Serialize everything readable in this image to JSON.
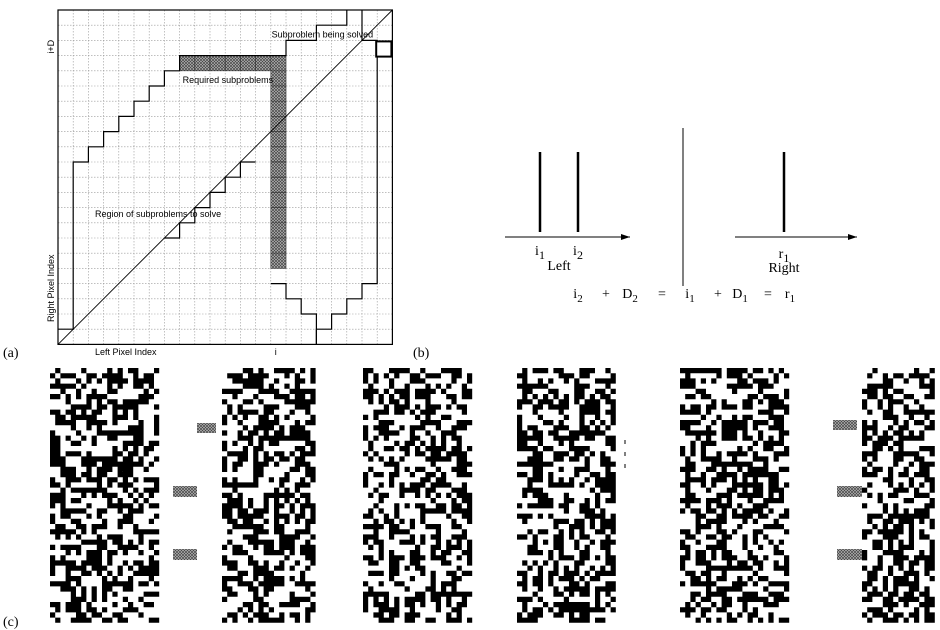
{
  "labels": {
    "a": "(a)",
    "b": "(b)",
    "c": "(c)"
  },
  "panel_a": {
    "annotations": [
      "Subproblem being solved",
      "Required subproblems",
      "Region of subproblems to solve"
    ],
    "y_axis": "Right Pixel Index",
    "x_axis": "Left Pixel Index",
    "x_mark": "i",
    "y_mark": "i+D"
  },
  "panel_b": {
    "left_ticks": [
      {
        "base": "i",
        "sub": "1"
      },
      {
        "base": "i",
        "sub": "2"
      }
    ],
    "left_label": "Left",
    "right_ticks": [
      {
        "base": "r",
        "sub": "1"
      }
    ],
    "right_label": "Right",
    "equation": [
      {
        "base": "i",
        "sub": "2"
      },
      {
        "base": "+"
      },
      {
        "base": "D",
        "sub": "2"
      },
      {
        "base": "="
      },
      {
        "base": "i",
        "sub": "1"
      },
      {
        "base": "+"
      },
      {
        "base": "D",
        "sub": "1"
      },
      {
        "base": "="
      },
      {
        "base": "r",
        "sub": "1"
      }
    ]
  }
}
